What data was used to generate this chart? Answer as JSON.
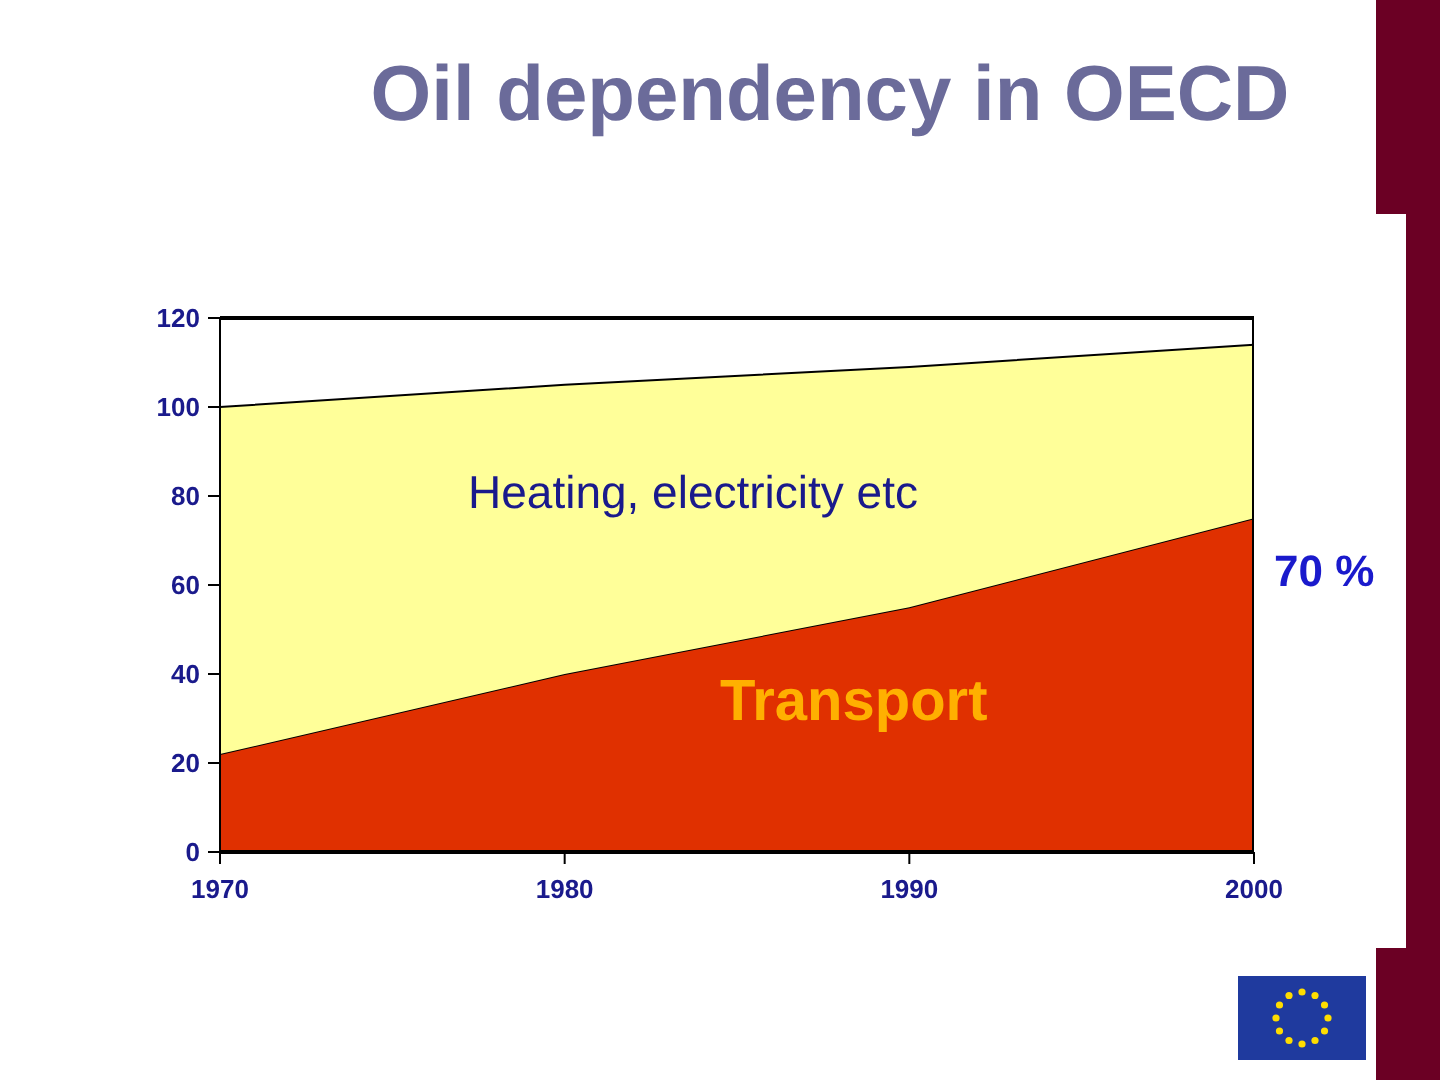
{
  "chart_data": {
    "type": "area",
    "title": "Oil dependency in OECD",
    "x": [
      1970,
      1980,
      1990,
      2000
    ],
    "xlim": [
      1970,
      2000
    ],
    "xticks": [
      1970,
      1980,
      1990,
      2000
    ],
    "ylim": [
      0,
      120
    ],
    "yticks": [
      0,
      20,
      40,
      60,
      80,
      100,
      120
    ],
    "stacked": true,
    "series": [
      {
        "name": "Transport",
        "color": "#e03000",
        "values": [
          22,
          40,
          55,
          75
        ]
      },
      {
        "name": "Heating, electricity etc",
        "color": "#ffff99",
        "values": [
          78,
          65,
          54,
          39
        ]
      }
    ],
    "annotations": [
      "70 %"
    ]
  }
}
